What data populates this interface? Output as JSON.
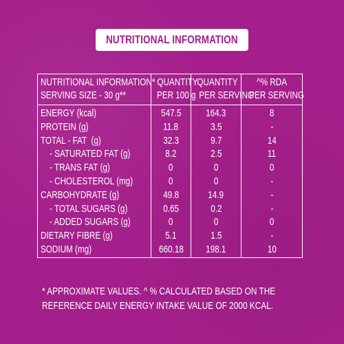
{
  "title": "NUTRITIONAL INFORMATION",
  "table": {
    "headers": {
      "col1_line1": "NUTRITIONAL INFORMATION*",
      "col1_line2": "SERVING SIZE - 30 g**",
      "col2_line1": "QUANTITY",
      "col2_line2": "PER 100 g",
      "col3_line1": "QUANTITY",
      "col3_line2": "PER SERVING",
      "col4_line1": "^% RDA",
      "col4_line2": "PER SERVING"
    },
    "rows": [
      {
        "name": "ENERGY (kcal)",
        "per100": "547.5",
        "perServing": "164.3",
        "rda": "8"
      },
      {
        "name": "PROTEIN (g)",
        "per100": "11.8",
        "perServing": "3.5",
        "rda": "-"
      },
      {
        "name": "TOTAL - FAT  (g)",
        "per100": "32.3",
        "perServing": "9.7",
        "rda": "14"
      },
      {
        "name": "    - SATURATED FAT (g)",
        "per100": "8.2",
        "perServing": "2.5",
        "rda": "11"
      },
      {
        "name": "    - TRANS FAT (g)",
        "per100": "0",
        "perServing": "0",
        "rda": "0"
      },
      {
        "name": "    - CHOLESTEROL (mg)",
        "per100": "0",
        "perServing": "0",
        "rda": "-"
      },
      {
        "name": "CARBOHYDRATE (g)",
        "per100": "49.8",
        "perServing": "14.9",
        "rda": "-"
      },
      {
        "name": "    - TOTAL SUGARS (g)",
        "per100": "0.65",
        "perServing": "0.2",
        "rda": "-"
      },
      {
        "name": "    - ADDED SUGARS (g)",
        "per100": "0",
        "perServing": "0",
        "rda": "0"
      },
      {
        "name": "DIETARY FIBRE (g)",
        "per100": "5.1",
        "perServing": "1.5",
        "rda": "-"
      },
      {
        "name": "SODIUM (mg)",
        "per100": "660.18",
        "perServing": "198.1",
        "rda": "10"
      }
    ]
  },
  "footnote": {
    "line1": "* APPROXIMATE VALUES. ^ % CALCULATED BASED ON THE",
    "line2": "REFERENCE DAILY ENERGY INTAKE VALUE OF 2000 KCAL."
  },
  "colors": {
    "background": "#a51f8c",
    "title_box": "#ffffff",
    "title_text": "#a51f8c",
    "text": "#ffffff"
  }
}
